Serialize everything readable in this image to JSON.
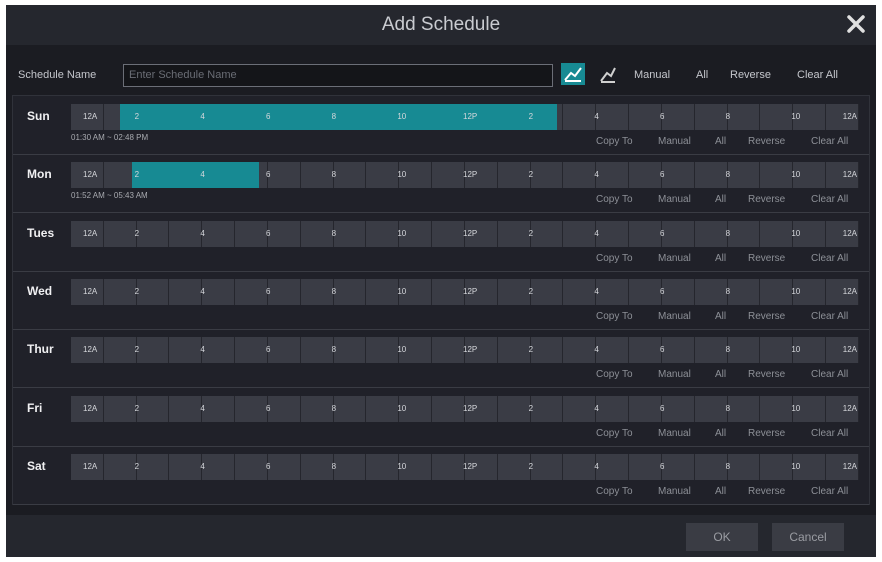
{
  "dialog": {
    "title": "Add Schedule"
  },
  "toolbar": {
    "name_label": "Schedule Name",
    "name_placeholder": "Enter Schedule Name",
    "buttons": [
      "Manual",
      "All",
      "Reverse",
      "Clear All"
    ]
  },
  "time_labels": [
    "12A",
    "2",
    "4",
    "6",
    "8",
    "10",
    "12P",
    "2",
    "4",
    "6",
    "8",
    "10",
    "12A"
  ],
  "row_buttons": [
    "Copy To",
    "Manual",
    "All",
    "Reverse",
    "Clear All"
  ],
  "days": [
    {
      "name": "Sun",
      "schedule": "01:30 AM ~ 02:48 PM"
    },
    {
      "name": "Mon",
      "schedule": "01:52 AM ~ 05:43 AM"
    },
    {
      "name": "Tues"
    },
    {
      "name": "Wed"
    },
    {
      "name": "Thur"
    },
    {
      "name": "Fri"
    },
    {
      "name": "Sat"
    }
  ],
  "footer": {
    "ok": "OK",
    "cancel": "Cancel"
  }
}
